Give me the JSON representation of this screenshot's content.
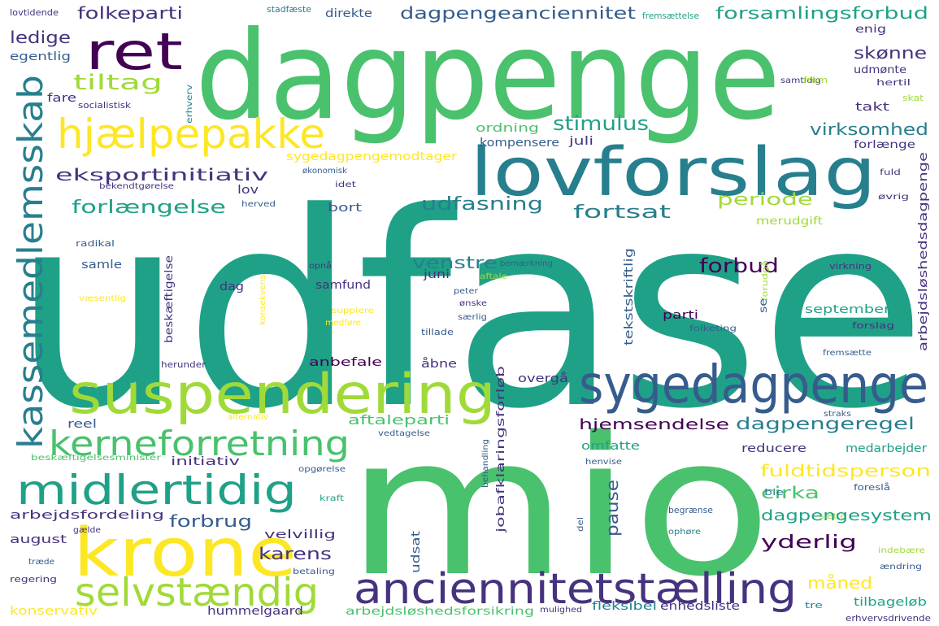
{
  "palette": {
    "background": "#ffffff",
    "c1": "#440154",
    "c2": "#46327e",
    "c3": "#365c8d",
    "c4": "#277f8e",
    "c5": "#1fa187",
    "c6": "#4ac16d",
    "c7": "#a0da39",
    "c8": "#fde725"
  },
  "words": {
    "udfase": "udfase",
    "mio": "mio",
    "dagpenge": "dagpenge",
    "lovforslag": "lovforslag",
    "sygedagpenge": "sygedagpenge",
    "suspendering": "suspendering",
    "krone": "krone",
    "anciennitetstalling": "anciennitetstælling",
    "ret": "ret",
    "hjalpepakke": "hjælpepakke",
    "kassemedlemsskab": "kassemedlemsskab",
    "midlertidig": "midlertidig",
    "selvstandig": "selvstændig",
    "kerneforretning": "kerneforretning",
    "folkeparti": "folkeparti",
    "ledige": "ledige",
    "egentlig": "egentlig",
    "lovtidende": "lovtidende",
    "stadfaste": "stadfæste",
    "direkte": "direkte",
    "fremsattelse_top": "fremsættelse",
    "dagpengeanciennitet": "dagpengeanciennitet",
    "forsamlingsforbud": "forsamlingsforbud",
    "enig": "enig",
    "skonne": "skønne",
    "udmonte": "udmønte",
    "hertil": "hertil",
    "samtidig": "samtidig",
    "frem": "frem",
    "skat": "skat",
    "tiltag": "tiltag",
    "fare": "fare",
    "socialistisk": "socialistisk",
    "erhverv": "erhverv",
    "stimulus": "stimulus",
    "ordning": "ordning",
    "virksomhed": "virksomhed",
    "takt": "takt",
    "forlange": "forlænge",
    "kompensere": "kompensere",
    "juli": "juli",
    "sygedagpengemodtager": "sygedagpengemodtager",
    "eksportinitiativ": "eksportinitiativ",
    "okonomisk": "økonomisk",
    "bekendtgorelse": "bekendtgørelse",
    "idet": "idet",
    "lov": "lov",
    "fuld": "fuld",
    "forlangelse": "forlængelse",
    "udfasning": "udfasning",
    "fortsat": "fortsat",
    "periode": "periode",
    "ovrig": "øvrig",
    "herved": "herved",
    "bort": "bort",
    "merudgift": "merudgift",
    "arbejdsloshedsdagpenge": "arbejdsløshedsdagpenge",
    "radikal": "radikal",
    "beskaftigelse": "beskæftigelse",
    "samle": "samle",
    "venstre": "venstre",
    "tekstskriftlig": "tekstskriftlig",
    "forbud": "forbud",
    "opna": "opnå",
    "bemarkning": "bemærkning",
    "juni": "juni",
    "aftale": "aftale",
    "virkning": "virkning",
    "forudga": "forudgå",
    "dag": "dag",
    "samfund": "samfund",
    "vasentlig": "væsentlig",
    "konsekvens": "konsekvens",
    "peter": "peter",
    "onske": "ønske",
    "supplere": "supplere",
    "medfore": "medføre",
    "sarlig": "særlig",
    "parti": "parti",
    "se": "se",
    "september": "september",
    "folketing": "folketing",
    "forslag": "forslag",
    "tillade": "tillade",
    "herunder": "herunder",
    "anbefale": "anbefale",
    "abne": "åbne",
    "jobafklaringsforlob": "jobafklaringsforløb",
    "overga": "overgå",
    "fremsatte": "fremsætte",
    "alternativ": "alternativ",
    "aftaleparti": "aftaleparti",
    "straks": "straks",
    "reel": "reel",
    "hjemsendelse": "hjemsendelse",
    "dagpengeregel": "dagpengeregel",
    "vedtagelse": "vedtagelse",
    "behandling": "behandling",
    "omfatte": "omfatte",
    "reducere": "reducere",
    "medarbejder": "medarbejder",
    "beskaftigelsesminister": "beskæftigelsesminister",
    "initiativ": "initiativ",
    "henvise": "henvise",
    "fuldtidsperson": "fuldtidsperson",
    "opgorelse": "opgørelse",
    "cirka": "cirka",
    "forsla": "foreslå",
    "kraft": "kraft",
    "ble": "ble",
    "satte": "sætte",
    "pause": "pause",
    "begranse": "begrænse",
    "dagpengesystem": "dagpengesystem",
    "arbejdsfordeling": "arbejdsfordeling",
    "forbrug": "forbrug",
    "galde": "gælde",
    "del": "del",
    "ophore": "ophøre",
    "velvillig": "velvillig",
    "yderlig": "yderlig",
    "august": "august",
    "karens": "karens",
    "udsat": "udsat",
    "indebare": "indebære",
    "trade": "træde",
    "andring": "ændring",
    "regering": "regering",
    "betaling": "betaling",
    "maned": "måned",
    "konservativ": "konservativ",
    "hummelgaard": "hummelgaard",
    "arbejdsloshedsforsikring": "arbejdsløshedsforsikring",
    "fleksibel": "fleksibel",
    "enhedsliste": "enhedsliste",
    "mulighed": "mulighed",
    "tre": "tre",
    "tilbagelob": "tilbageløb",
    "erhvervsdrivende": "erhvervsdrivende"
  }
}
